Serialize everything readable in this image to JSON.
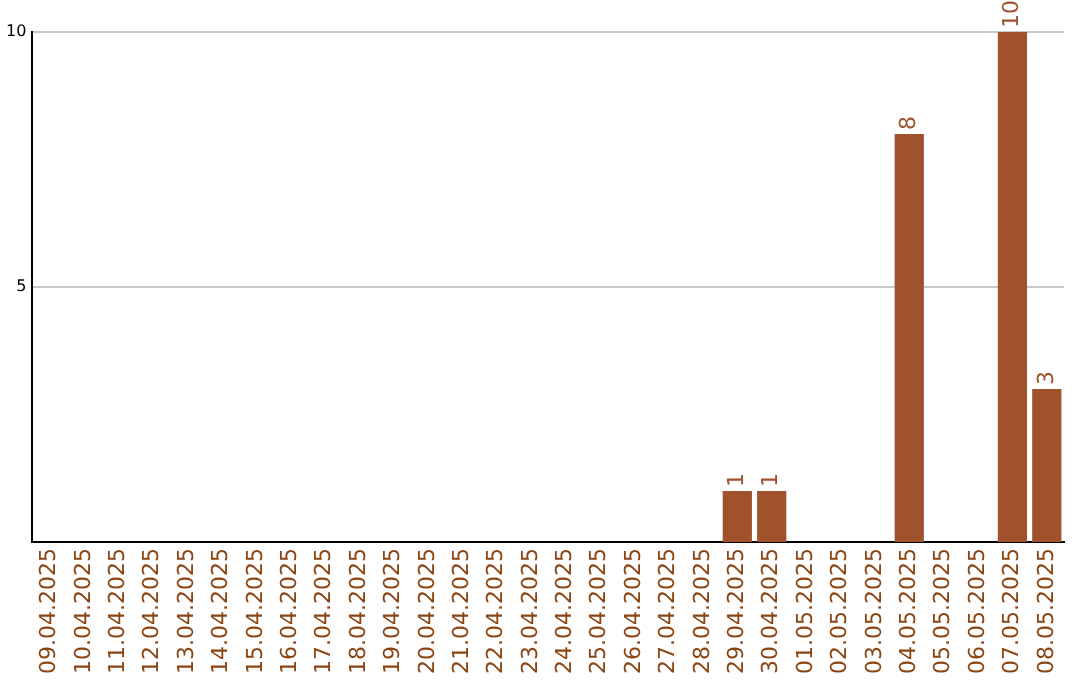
{
  "chart_data": {
    "type": "bar",
    "categories": [
      "09.04.2025",
      "10.04.2025",
      "11.04.2025",
      "12.04.2025",
      "13.04.2025",
      "14.04.2025",
      "15.04.2025",
      "16.04.2025",
      "17.04.2025",
      "18.04.2025",
      "19.04.2025",
      "20.04.2025",
      "21.04.2025",
      "22.04.2025",
      "23.04.2025",
      "24.04.2025",
      "25.04.2025",
      "26.04.2025",
      "27.04.2025",
      "28.04.2025",
      "29.04.2025",
      "30.04.2025",
      "01.05.2025",
      "02.05.2025",
      "03.05.2025",
      "04.05.2025",
      "05.05.2025",
      "06.05.2025",
      "07.05.2025",
      "08.05.2025"
    ],
    "values": [
      0,
      0,
      0,
      0,
      0,
      0,
      0,
      0,
      0,
      0,
      0,
      0,
      0,
      0,
      0,
      0,
      0,
      0,
      0,
      0,
      1,
      1,
      0,
      0,
      0,
      8,
      0,
      0,
      10,
      3
    ],
    "value_labels": [
      null,
      null,
      null,
      null,
      null,
      null,
      null,
      null,
      null,
      null,
      null,
      null,
      null,
      null,
      null,
      null,
      null,
      null,
      null,
      null,
      "1",
      "1",
      null,
      null,
      null,
      "8",
      null,
      null,
      "10",
      "3"
    ],
    "color": "#a0522d",
    "ylim": [
      0,
      10
    ],
    "yticks": [
      5,
      10
    ],
    "grid": "y",
    "legend": false
  }
}
